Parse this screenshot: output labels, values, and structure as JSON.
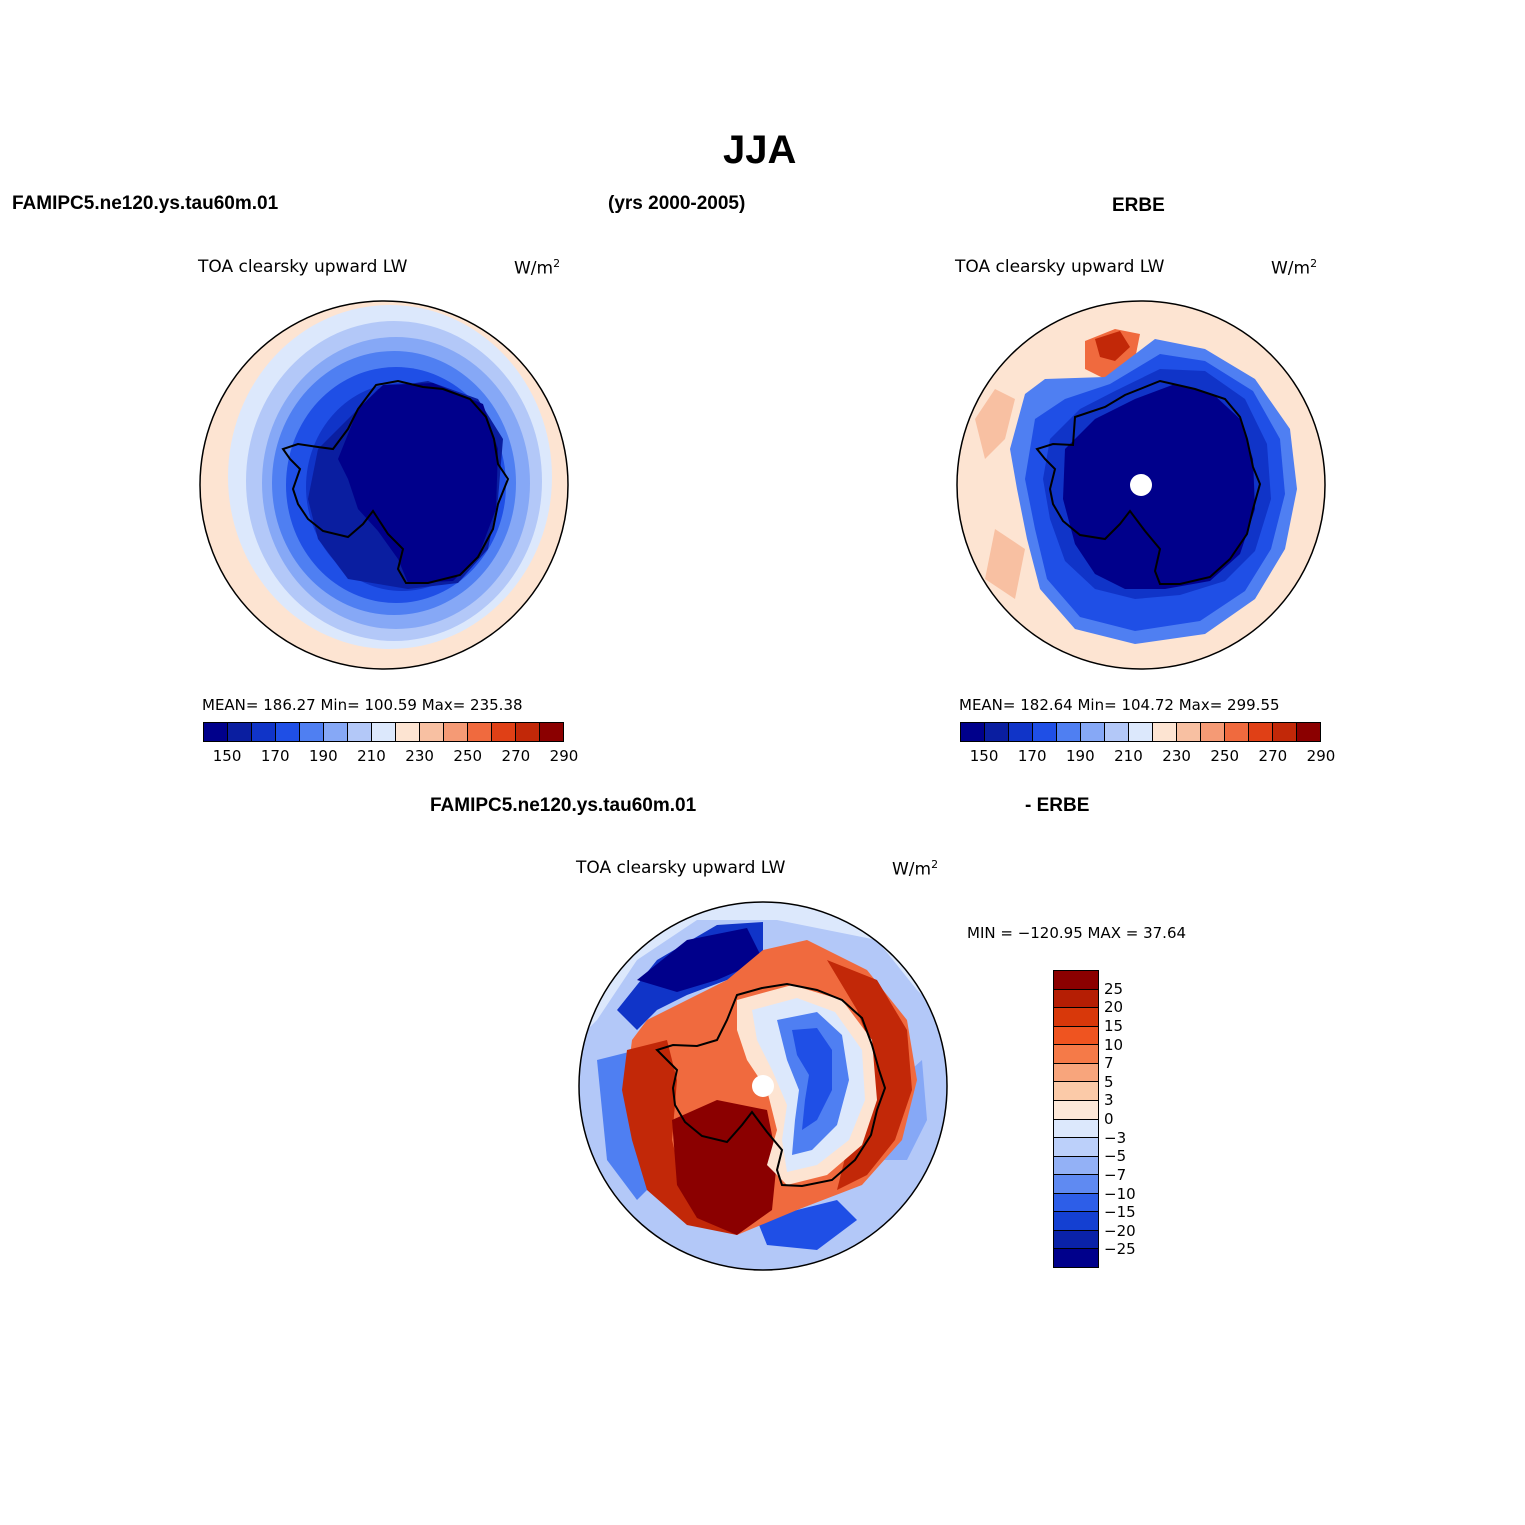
{
  "figure": {
    "title": "JJA",
    "left_model": "FAMIPC5.ne120.ys.tau60m.01",
    "years": "(yrs 2000-2005)",
    "right_obs": "ERBE",
    "diff_left": "FAMIPC5.ne120.ys.tau60m.01",
    "diff_right": "- ERBE"
  },
  "panels": {
    "model": {
      "variable": "TOA clearsky upward LW",
      "units": "W/m",
      "units_sup": "2",
      "stats": "MEAN= 186.27   Min= 100.59   Max= 235.38"
    },
    "obs": {
      "variable": "TOA clearsky upward LW",
      "units": "W/m",
      "units_sup": "2",
      "stats": "MEAN= 182.64   Min= 104.72   Max= 299.55"
    },
    "diff": {
      "variable": "TOA clearsky upward LW",
      "units": "W/m",
      "units_sup": "2",
      "stats": "MIN = −120.95 MAX =  37.64"
    }
  },
  "colorbar_main": {
    "colors": [
      "#00008b",
      "#0a1ea0",
      "#1034c8",
      "#1f4fe6",
      "#4f7ff2",
      "#86a8f6",
      "#b3c8f8",
      "#dce8fc",
      "#fde4d2",
      "#f8c0a2",
      "#f59a75",
      "#f06a3e",
      "#e04016",
      "#c22808",
      "#8b0000"
    ],
    "tick_labels": [
      "150",
      "170",
      "190",
      "210",
      "230",
      "250",
      "270",
      "290"
    ]
  },
  "colorbar_diff": {
    "colors": [
      "#8b0000",
      "#b51e04",
      "#d8380a",
      "#ef5420",
      "#f57a48",
      "#f8a57c",
      "#fbcaa8",
      "#fde8d8",
      "#dce8fc",
      "#bcd0fa",
      "#93b1f6",
      "#5f8af2",
      "#2d5ee8",
      "#1440d2",
      "#0a22a8",
      "#00008b"
    ],
    "tick_labels": [
      "25",
      "20",
      "15",
      "10",
      "7",
      "5",
      "3",
      "0",
      "−3",
      "−5",
      "−7",
      "−10",
      "−15",
      "−20",
      "−25"
    ]
  },
  "map_colors": {
    "deep_blue": "#00008b",
    "blue2": "#0a1ea0",
    "blue3": "#1034c8",
    "blue4": "#1f4fe6",
    "blue5": "#4f7ff2",
    "blue6": "#86a8f6",
    "blue7": "#b3c8f8",
    "blue8": "#dce8fc",
    "peach": "#fde4d2",
    "peach2": "#f8c0a2",
    "orange": "#f06a3e",
    "red": "#c22808",
    "dark_red": "#8b0000"
  }
}
